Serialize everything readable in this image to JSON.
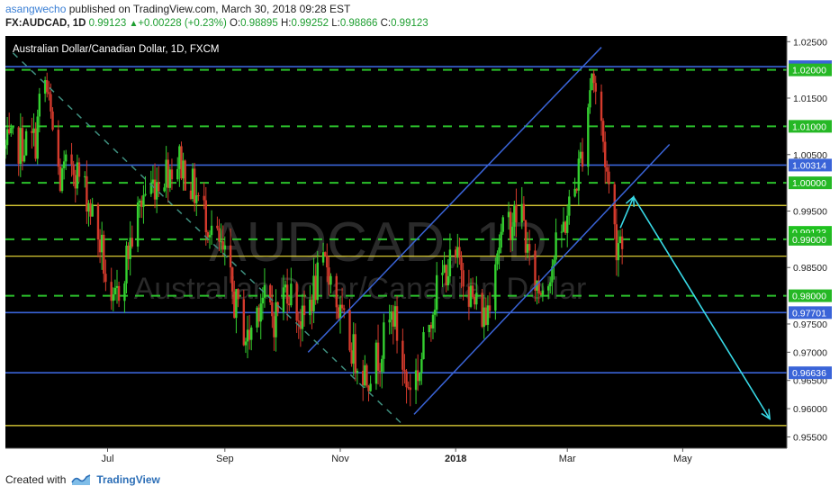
{
  "header": {
    "author": "asangwecho",
    "published": "published on TradingView.com, March 30, 2018 09:28 EST",
    "symbol": "FX:AUDCAD, 1D",
    "last": "0.99123",
    "change_arrow": "▲",
    "change": "+0.00228 (+0.23%)",
    "open_label": "O:",
    "open": "0.98895",
    "high_label": "H:",
    "high": "0.99252",
    "low_label": "L:",
    "low": "0.98866",
    "close_label": "C:",
    "close": "0.99123"
  },
  "footer": {
    "created_with": "Created with",
    "brand": "TradingView"
  },
  "colors": {
    "background": "#000000",
    "up_candle": "#34d030",
    "down_candle": "#d43a2c",
    "blue_line": "#3a64d8",
    "yellow_line": "#f0e03a",
    "green_dashed": "#2bc02b",
    "cyan_arrow": "#38d9e6",
    "axis_text": "#222222"
  },
  "chart_data": {
    "type": "candlestick",
    "title": "Australian Dollar/Canadian Dollar, 1D, FXCM",
    "watermark_symbol": "AUDCAD, 1D",
    "watermark_name": "Australian Dollar/Canadian Dollar",
    "x_ticks": [
      "Jul",
      "Sep",
      "Nov",
      "2018",
      "Mar",
      "May"
    ],
    "x_range": [
      "2017-05-08",
      "2018-06-25"
    ],
    "ylim": [
      0.953,
      1.026
    ],
    "y_ticks": [
      "1.02500",
      "1.01500",
      "1.00500",
      "0.99500",
      "0.98500",
      "0.97500",
      "0.97000",
      "0.96500",
      "0.96000",
      "0.95500"
    ],
    "price_labels": [
      {
        "value": "1.02057",
        "kind": "blue"
      },
      {
        "value": "1.02000",
        "kind": "green"
      },
      {
        "value": "1.01000",
        "kind": "green"
      },
      {
        "value": "1.00314",
        "kind": "blue"
      },
      {
        "value": "1.00000",
        "kind": "green"
      },
      {
        "value": "0.99123",
        "kind": "last"
      },
      {
        "value": "0.99000",
        "kind": "green"
      },
      {
        "value": "0.98000",
        "kind": "green"
      },
      {
        "value": "0.97701",
        "kind": "blue"
      },
      {
        "value": "0.96636",
        "kind": "blue"
      }
    ],
    "horizontal_levels": [
      {
        "value": 1.02057,
        "style": "blue"
      },
      {
        "value": 1.02,
        "style": "green-dashed"
      },
      {
        "value": 1.01,
        "style": "green-dashed"
      },
      {
        "value": 1.00314,
        "style": "blue"
      },
      {
        "value": 1.0,
        "style": "green-dashed"
      },
      {
        "value": 0.996,
        "style": "yellow"
      },
      {
        "value": 0.99,
        "style": "green-dashed"
      },
      {
        "value": 0.987,
        "style": "yellow"
      },
      {
        "value": 0.98,
        "style": "green-dashed"
      },
      {
        "value": 0.97701,
        "style": "blue"
      },
      {
        "value": 0.96636,
        "style": "blue"
      },
      {
        "value": 0.957,
        "style": "yellow"
      }
    ],
    "trend_lines": [
      {
        "x1": "2017-10-15",
        "y1": 0.97,
        "x2": "2018-03-19",
        "y2": 1.024,
        "style": "blue"
      },
      {
        "x1": "2017-12-10",
        "y1": 0.959,
        "x2": "2018-04-24",
        "y2": 1.0068,
        "style": "blue"
      },
      {
        "x1": "2017-05-12",
        "y1": 1.023,
        "x2": "2017-12-03",
        "y2": 0.9575,
        "style": "dashed-teal"
      }
    ],
    "projection": [
      {
        "x": "2018-03-29",
        "y": 0.992
      },
      {
        "x": "2018-04-05",
        "y": 0.9975
      },
      {
        "x": "2018-06-16",
        "y": 0.9582
      }
    ],
    "candles": {
      "start": "2017-05-08",
      "interval_days": 1,
      "trading_days_only": true,
      "anchors": [
        [
          "2017-05-08",
          1.006
        ],
        [
          "2017-05-24",
          1.0075
        ],
        [
          "2017-05-28",
          1.02
        ],
        [
          "2017-06-06",
          1.0
        ],
        [
          "2017-06-12",
          1.004
        ],
        [
          "2017-06-20",
          0.998
        ],
        [
          "2017-06-28",
          0.988
        ],
        [
          "2017-07-03",
          0.976
        ],
        [
          "2017-07-12",
          0.988
        ],
        [
          "2017-07-20",
          0.998
        ],
        [
          "2017-07-31",
          1.002
        ],
        [
          "2017-08-08",
          1.004
        ],
        [
          "2017-08-18",
          0.997
        ],
        [
          "2017-08-25",
          0.992
        ],
        [
          "2017-09-01",
          0.986
        ],
        [
          "2017-09-06",
          0.979
        ],
        [
          "2017-09-13",
          0.972
        ],
        [
          "2017-09-20",
          0.98
        ],
        [
          "2017-09-27",
          0.976
        ],
        [
          "2017-10-04",
          0.982
        ],
        [
          "2017-10-12",
          0.975
        ],
        [
          "2017-10-18",
          0.981
        ],
        [
          "2017-10-25",
          0.986
        ],
        [
          "2017-11-01",
          0.976
        ],
        [
          "2017-11-08",
          0.97
        ],
        [
          "2017-11-15",
          0.966
        ],
        [
          "2017-11-22",
          0.97
        ],
        [
          "2017-11-29",
          0.977
        ],
        [
          "2017-12-06",
          0.964
        ],
        [
          "2017-12-13",
          0.967
        ],
        [
          "2017-12-20",
          0.979
        ],
        [
          "2017-12-27",
          0.985
        ],
        [
          "2018-01-04",
          0.986
        ],
        [
          "2018-01-10",
          0.979
        ],
        [
          "2018-01-17",
          0.976
        ],
        [
          "2018-01-22",
          0.988
        ],
        [
          "2018-01-29",
          0.993
        ],
        [
          "2018-02-05",
          0.995
        ],
        [
          "2018-02-09",
          0.985
        ],
        [
          "2018-02-14",
          0.981
        ],
        [
          "2018-02-19",
          0.984
        ],
        [
          "2018-02-26",
          0.991
        ],
        [
          "2018-03-05",
          0.999
        ],
        [
          "2018-03-09",
          1.006
        ],
        [
          "2018-03-14",
          1.02
        ],
        [
          "2018-03-19",
          1.01
        ],
        [
          "2018-03-23",
          0.999
        ],
        [
          "2018-03-27",
          0.9895
        ],
        [
          "2018-03-30",
          0.9912
        ]
      ]
    }
  }
}
